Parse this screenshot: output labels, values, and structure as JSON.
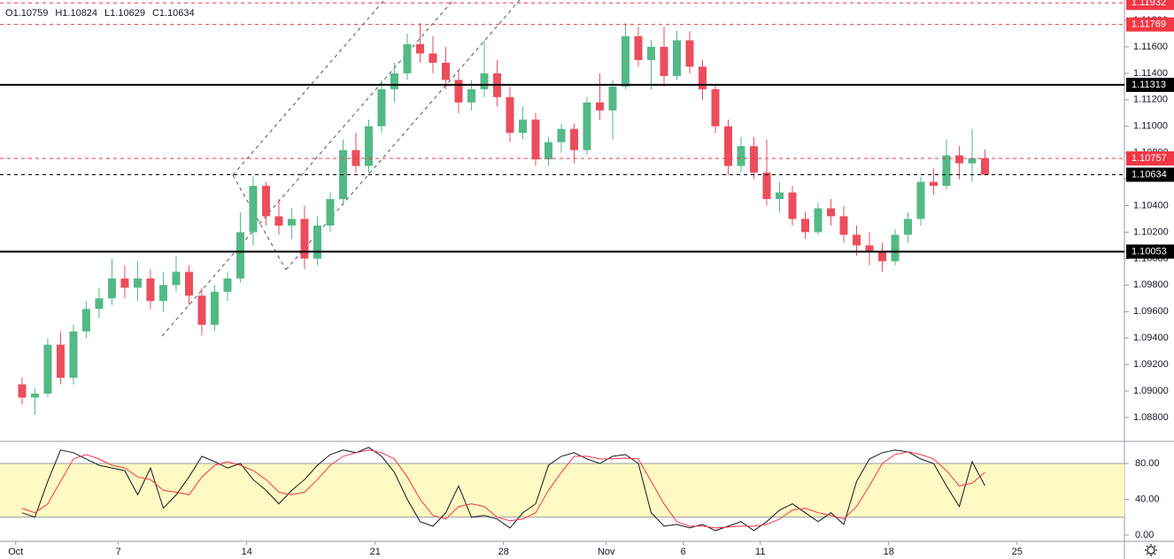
{
  "chart_data": [
    {
      "type": "candlestick",
      "header_labels": [
        "O",
        "H",
        "L",
        "C"
      ],
      "open": [
        1.0905,
        1.0895,
        1.0898,
        1.0935,
        1.091,
        1.0945,
        1.0962,
        1.097,
        1.0985,
        1.0978,
        1.0985,
        1.0968,
        1.098,
        1.099,
        1.0972,
        1.095,
        1.0975,
        1.0985,
        1.102,
        1.1055,
        1.1032,
        1.1025,
        1.103,
        1.1,
        1.1025,
        1.1045,
        1.1082,
        1.107,
        1.11,
        1.1128,
        1.114,
        1.1162,
        1.1155,
        1.1148,
        1.1135,
        1.1118,
        1.1128,
        1.114,
        1.1122,
        1.1095,
        1.1105,
        1.1075,
        1.1088,
        1.1098,
        1.1082,
        1.1118,
        1.1112,
        1.113,
        1.1168,
        1.115,
        1.116,
        1.1138,
        1.1165,
        1.1145,
        1.1128,
        1.11,
        1.107,
        1.1085,
        1.1065,
        1.1045,
        1.105,
        1.103,
        1.102,
        1.1038,
        1.1032,
        1.1018,
        1.101,
        1.1005,
        1.0998,
        1.1018,
        1.103,
        1.1058,
        1.1055,
        1.1078,
        1.1072,
        1.10759
      ],
      "high": [
        1.091,
        1.0902,
        1.094,
        1.0945,
        1.095,
        1.0968,
        1.0978,
        1.1,
        1.0995,
        1.0998,
        1.0992,
        1.099,
        1.1002,
        1.0995,
        1.0978,
        1.098,
        1.099,
        1.1035,
        1.1062,
        1.1058,
        1.1045,
        1.1038,
        1.104,
        1.1032,
        1.105,
        1.109,
        1.1095,
        1.1105,
        1.1135,
        1.1148,
        1.117,
        1.1178,
        1.1168,
        1.116,
        1.1142,
        1.1135,
        1.1165,
        1.115,
        1.113,
        1.1115,
        1.111,
        1.1092,
        1.1102,
        1.1102,
        1.1122,
        1.114,
        1.1135,
        1.1178,
        1.1175,
        1.1165,
        1.1175,
        1.1172,
        1.1172,
        1.115,
        1.1132,
        1.1105,
        1.1092,
        1.1092,
        1.109,
        1.1058,
        1.1055,
        1.1035,
        1.1042,
        1.1045,
        1.104,
        1.1025,
        1.102,
        1.1012,
        1.1022,
        1.1035,
        1.1062,
        1.1068,
        1.109,
        1.1085,
        1.1098,
        1.10824
      ],
      "low": [
        1.089,
        1.0882,
        1.0895,
        1.0905,
        1.0905,
        1.094,
        1.0955,
        1.0965,
        1.097,
        1.0968,
        1.0962,
        1.096,
        1.0975,
        1.0965,
        1.0942,
        1.0945,
        1.0968,
        1.0982,
        1.101,
        1.1025,
        1.1018,
        1.1015,
        1.0992,
        1.0995,
        1.102,
        1.104,
        1.1065,
        1.1065,
        1.1095,
        1.1118,
        1.1135,
        1.1148,
        1.114,
        1.1128,
        1.111,
        1.1112,
        1.1122,
        1.1115,
        1.1088,
        1.109,
        1.107,
        1.107,
        1.108,
        1.1072,
        1.1078,
        1.1105,
        1.109,
        1.1128,
        1.1145,
        1.1128,
        1.113,
        1.1135,
        1.114,
        1.112,
        1.1095,
        1.1063,
        1.1065,
        1.106,
        1.104,
        1.1035,
        1.1025,
        1.1015,
        1.1018,
        1.1025,
        1.1012,
        1.1002,
        1.0995,
        1.099,
        1.0995,
        1.1012,
        1.1025,
        1.1048,
        1.1052,
        1.106,
        1.1058,
        1.10629
      ],
      "close": [
        1.0895,
        1.0898,
        1.0935,
        1.091,
        1.0945,
        1.0962,
        1.097,
        1.0985,
        1.0978,
        1.0985,
        1.0968,
        1.098,
        1.099,
        1.0972,
        1.095,
        1.0975,
        1.0985,
        1.102,
        1.1055,
        1.1032,
        1.1025,
        1.103,
        1.1,
        1.1025,
        1.1045,
        1.1082,
        1.107,
        1.11,
        1.1128,
        1.114,
        1.1162,
        1.1155,
        1.1148,
        1.1135,
        1.1118,
        1.1128,
        1.114,
        1.1122,
        1.1095,
        1.1105,
        1.1075,
        1.1088,
        1.1098,
        1.1082,
        1.1118,
        1.1112,
        1.113,
        1.1168,
        1.115,
        1.116,
        1.1138,
        1.1165,
        1.1145,
        1.1128,
        1.11,
        1.107,
        1.1085,
        1.1065,
        1.1045,
        1.105,
        1.103,
        1.102,
        1.1038,
        1.1032,
        1.1018,
        1.101,
        1.1005,
        1.0998,
        1.1018,
        1.103,
        1.1058,
        1.1055,
        1.1078,
        1.1072,
        1.10759,
        1.10634
      ],
      "up_color": "#53b987",
      "down_color": "#eb4d5c",
      "xlim": [
        -1.72,
        85.86
      ],
      "xticks": [
        {
          "value": -0.5,
          "label": "Oct"
        },
        {
          "value": 7.5,
          "label": "7"
        },
        {
          "value": 17.5,
          "label": "14"
        },
        {
          "value": 27.5,
          "label": "21"
        },
        {
          "value": 37.5,
          "label": "28"
        },
        {
          "value": 45.5,
          "label": "Nov"
        },
        {
          "value": 51.5,
          "label": "6"
        },
        {
          "value": 57.5,
          "label": "11"
        },
        {
          "value": 67.5,
          "label": "18"
        },
        {
          "value": 77.5,
          "label": "25"
        }
      ],
      "ylim": [
        1.08626,
        1.11954
      ],
      "yticks": [
        {
          "value": 1.088,
          "label": "1.08800"
        },
        {
          "value": 1.09,
          "label": "1.09000"
        },
        {
          "value": 1.092,
          "label": "1.09200"
        },
        {
          "value": 1.094,
          "label": "1.09400"
        },
        {
          "value": 1.096,
          "label": "1.09600"
        },
        {
          "value": 1.098,
          "label": "1.09800"
        },
        {
          "value": 1.1,
          "label": "1.10000"
        },
        {
          "value": 1.102,
          "label": "1.10200"
        },
        {
          "value": 1.104,
          "label": "1.10400"
        },
        {
          "value": 1.106,
          "label": "1.10600"
        },
        {
          "value": 1.108,
          "label": "1.10800"
        },
        {
          "value": 1.11,
          "label": "1.11000"
        },
        {
          "value": 1.112,
          "label": "1.11200"
        },
        {
          "value": 1.114,
          "label": "1.11400"
        },
        {
          "value": 1.116,
          "label": "1.11600"
        },
        {
          "value": 1.118,
          "label": "1.11800"
        }
      ],
      "levels": [
        {
          "value": 1.11932,
          "color": "#f23645",
          "style": "dashed"
        },
        {
          "value": 1.11769,
          "color": "#f23645",
          "style": "dashed"
        },
        {
          "value": 1.11313,
          "color": "#000000",
          "style": "solid"
        },
        {
          "value": 1.10757,
          "color": "#f23645",
          "style": "dashed"
        },
        {
          "value": 1.10634,
          "color": "#000000",
          "style": "dashed"
        },
        {
          "value": 1.10053,
          "color": "#000000",
          "style": "solid"
        }
      ],
      "grid": false
    },
    {
      "type": "line",
      "ylim": [
        -6.9,
        103.7
      ],
      "yticks": [
        {
          "value": 80,
          "label": "80.00"
        },
        {
          "value": 40,
          "label": "40.00"
        },
        {
          "value": 0,
          "label": "0.00"
        }
      ],
      "band": [
        20,
        80
      ],
      "band_color": "#fff9c4",
      "series": [
        {
          "color": "#131722",
          "values": [
            25,
            20,
            60,
            95,
            92,
            85,
            78,
            75,
            72,
            45,
            75,
            30,
            45,
            65,
            88,
            82,
            75,
            80,
            62,
            50,
            35,
            50,
            62,
            78,
            90,
            95,
            92,
            98,
            88,
            70,
            40,
            15,
            10,
            25,
            55,
            20,
            22,
            18,
            8,
            25,
            35,
            78,
            88,
            92,
            85,
            80,
            88,
            90,
            80,
            25,
            10,
            12,
            8,
            12,
            5,
            10,
            15,
            5,
            15,
            28,
            35,
            25,
            15,
            25,
            12,
            60,
            85,
            92,
            95,
            93,
            85,
            80,
            55,
            32,
            82,
            55
          ]
        },
        {
          "color": "#f23645",
          "values": [
            30,
            25,
            35,
            60,
            85,
            90,
            85,
            78,
            75,
            65,
            62,
            50,
            48,
            45,
            65,
            78,
            82,
            78,
            72,
            62,
            48,
            45,
            48,
            62,
            78,
            88,
            92,
            95,
            92,
            85,
            65,
            40,
            22,
            18,
            32,
            35,
            32,
            20,
            16,
            18,
            25,
            50,
            70,
            88,
            88,
            85,
            85,
            86,
            85,
            60,
            35,
            15,
            10,
            10,
            8,
            9,
            10,
            10,
            12,
            18,
            28,
            30,
            25,
            22,
            18,
            32,
            55,
            80,
            90,
            93,
            90,
            85,
            72,
            55,
            58,
            70
          ]
        }
      ]
    }
  ]
}
